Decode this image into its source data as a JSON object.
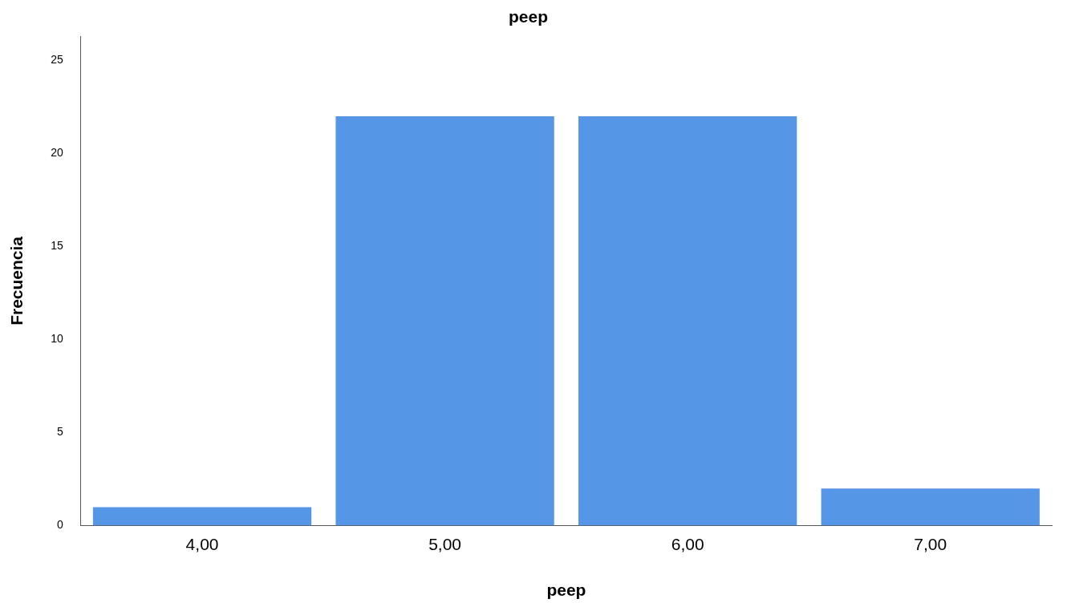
{
  "chart_data": {
    "type": "bar",
    "title": "peep",
    "xlabel": "peep",
    "ylabel": "Frecuencia",
    "categories": [
      "4,00",
      "5,00",
      "6,00",
      "7,00"
    ],
    "values": [
      1,
      22,
      22,
      2
    ],
    "color": "#5596e6",
    "ylim": [
      0,
      26.3
    ],
    "yticks": [
      0,
      5,
      10,
      15,
      20,
      25
    ],
    "grid": false,
    "legend": false
  }
}
